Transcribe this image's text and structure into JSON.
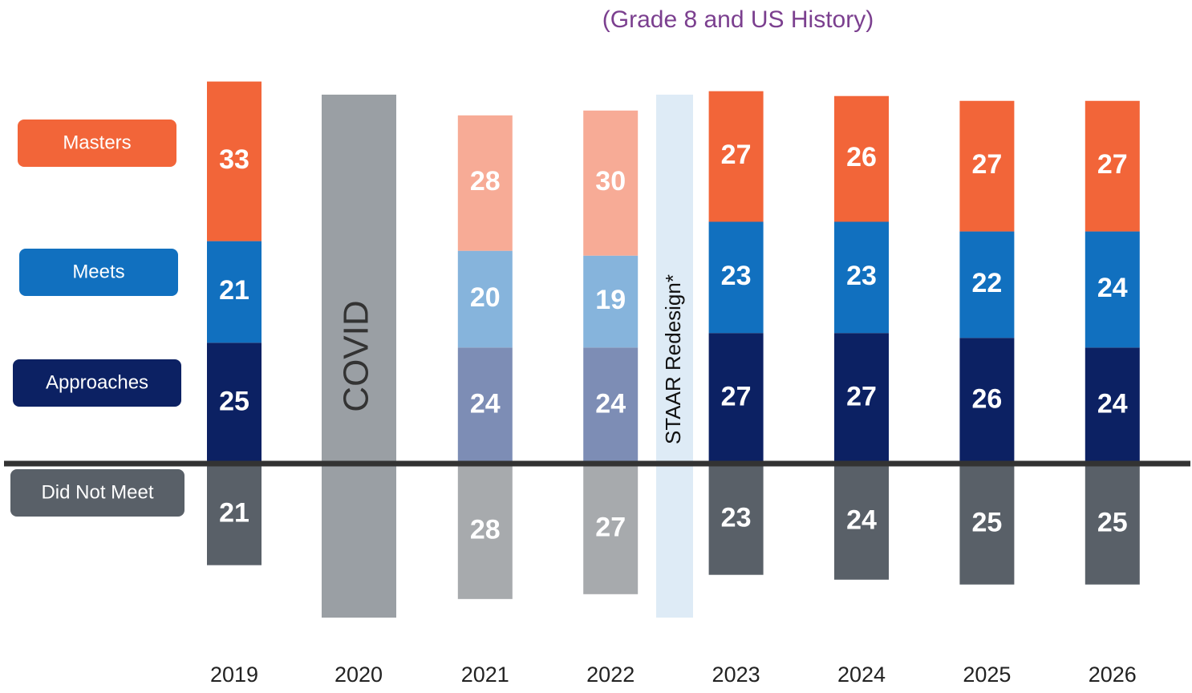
{
  "chart_data": {
    "type": "diverging-stacked-bar",
    "title": "(Grade 8 and US History)",
    "categories": [
      "2019",
      "2020",
      "2021",
      "2022",
      "2023",
      "2024",
      "2025",
      "2026"
    ],
    "annotations": [
      "COVID",
      "STAAR Redesign*"
    ],
    "series": [
      {
        "name": "Did Not Meet",
        "direction": "down",
        "color": "#596068",
        "colors": [
          "#596068",
          null,
          "#a7aaad",
          "#a7aaad",
          "#596068",
          "#596068",
          "#596068",
          "#596068"
        ],
        "values": [
          21,
          null,
          28,
          27,
          23,
          24,
          25,
          25
        ]
      },
      {
        "name": "Approaches",
        "direction": "up",
        "color": "#0c2163",
        "colors": [
          "#0c2163",
          null,
          "#7d8db5",
          "#7d8db5",
          "#0c2163",
          "#0c2163",
          "#0c2163",
          "#0c2163"
        ],
        "values": [
          25,
          null,
          24,
          24,
          27,
          27,
          26,
          24
        ]
      },
      {
        "name": "Meets",
        "direction": "up",
        "color": "#1170bf",
        "colors": [
          "#1170bf",
          null,
          "#86b4dc",
          "#86b4dc",
          "#1170bf",
          "#1170bf",
          "#1170bf",
          "#1170bf"
        ],
        "values": [
          21,
          null,
          20,
          19,
          23,
          23,
          22,
          24
        ]
      },
      {
        "name": "Masters",
        "direction": "up",
        "color": "#f26539",
        "colors": [
          "#f26539",
          null,
          "#f7ab96",
          "#f7ab96",
          "#f26539",
          "#f26539",
          "#f26539",
          "#f26539"
        ],
        "values": [
          33,
          null,
          28,
          30,
          27,
          26,
          27,
          27
        ]
      }
    ]
  }
}
